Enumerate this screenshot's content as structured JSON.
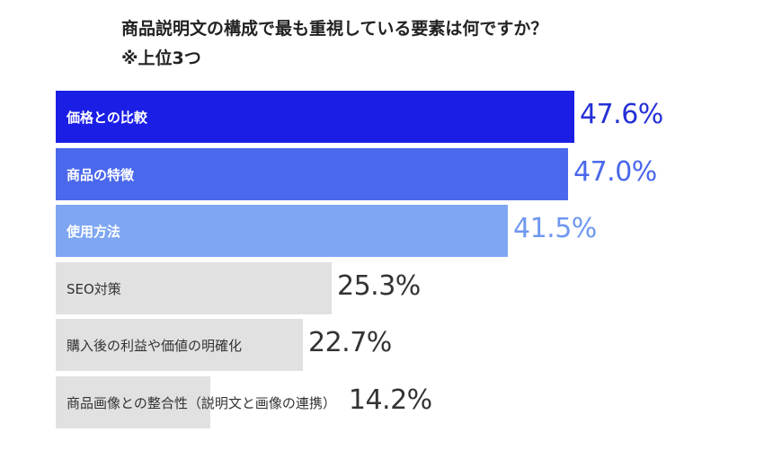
{
  "title_line1": "商品説明文の構成で最も重視している要素は何ですか？",
  "title_line2": "※上位3つ",
  "chart_data": {
    "type": "bar",
    "orientation": "horizontal",
    "categories": [
      "価格との比較",
      "商品の特徴",
      "使用方法",
      "SEO対策",
      "購入後の利益や価値の明確化",
      "商品画像との整合性（説明文と画像の連携）"
    ],
    "values": [
      47.6,
      47.0,
      41.5,
      25.3,
      22.7,
      14.2
    ],
    "value_labels": [
      "47.6%",
      "47.0%",
      "41.5%",
      "25.3%",
      "22.7%",
      "14.2%"
    ],
    "unit": "%",
    "colors": [
      "#1b1fe6",
      "#4a68eb",
      "#7ea6f2",
      "#e1e1e1",
      "#e1e1e1",
      "#e1e1e1"
    ],
    "value_colors": [
      "#2430d6",
      "#4a68eb",
      "#6f98ef",
      "#333333",
      "#333333",
      "#333333"
    ],
    "label_colors": [
      "#ffffff",
      "#ffffff",
      "#ffffff",
      "#333333",
      "#333333",
      "#333333"
    ]
  }
}
